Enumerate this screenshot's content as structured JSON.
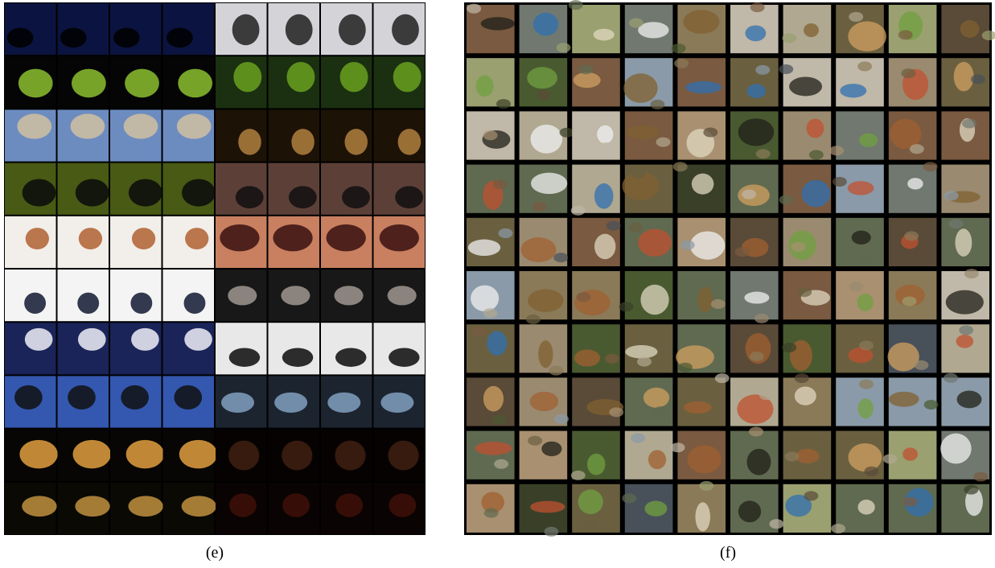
{
  "captions": {
    "left": "(e)",
    "right": "(f)"
  }
}
